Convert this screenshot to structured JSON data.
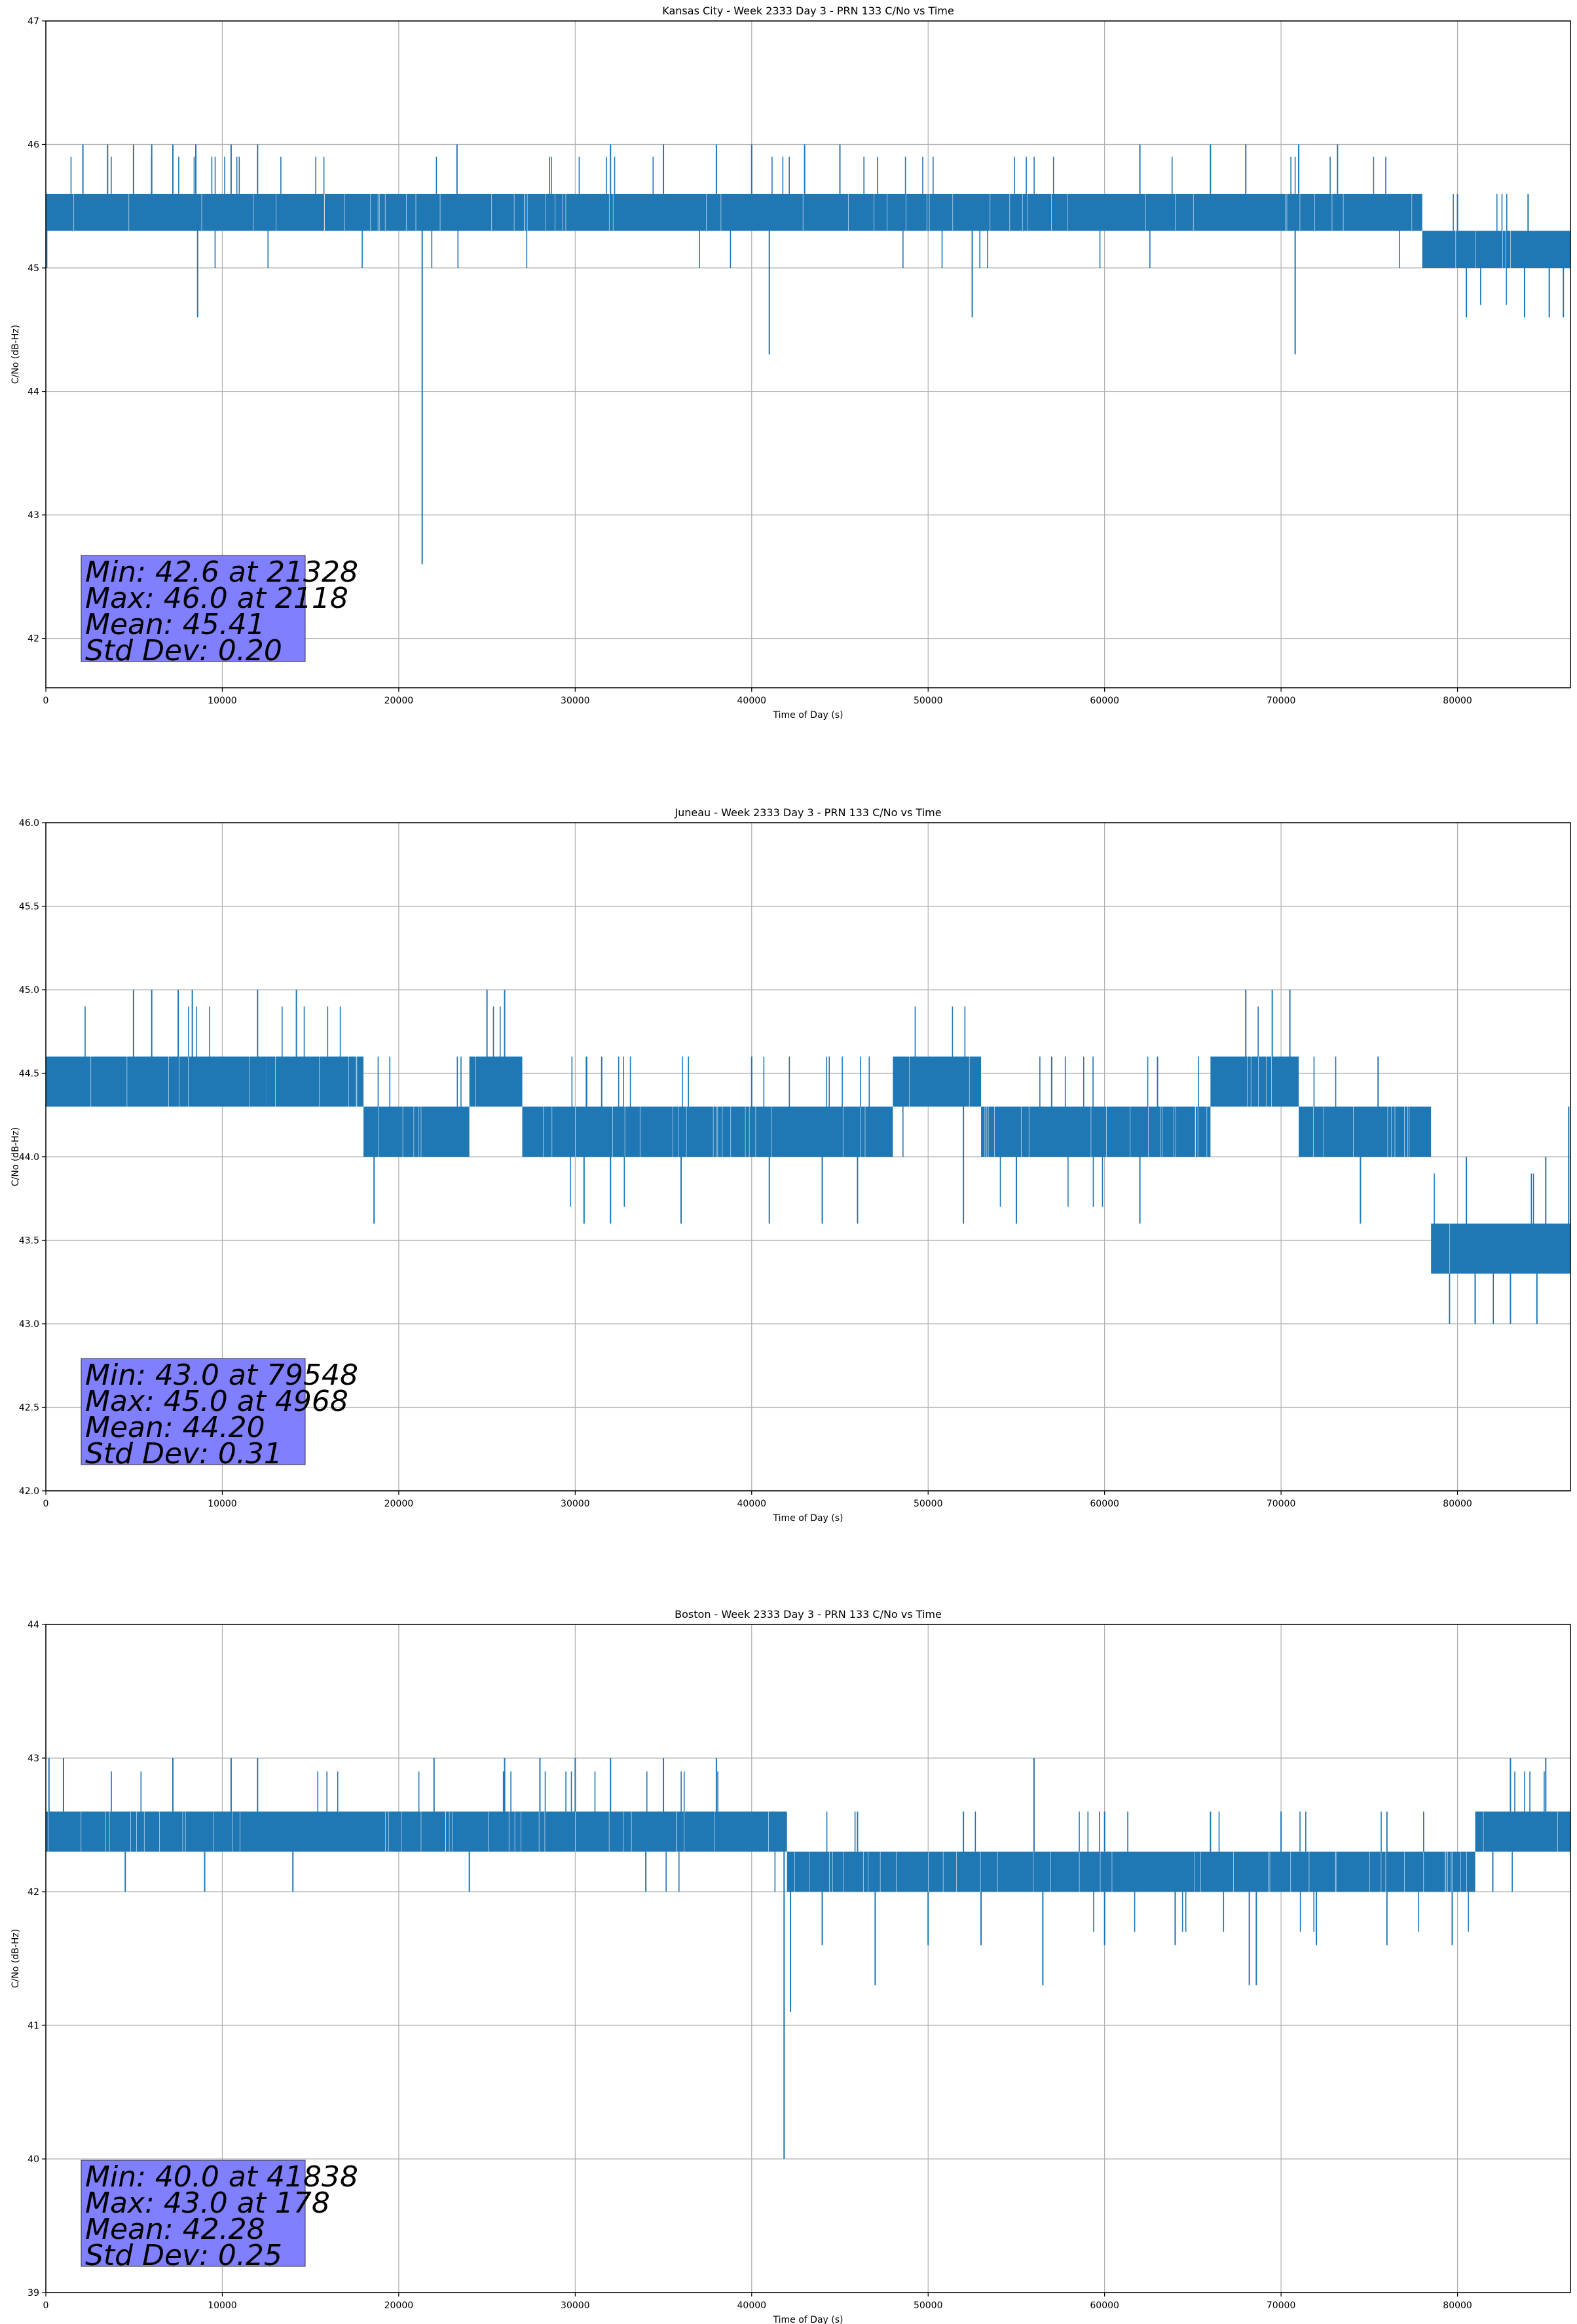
{
  "colors": {
    "line": "#1f77b4",
    "grid": "#b0b0b0",
    "stats_box": "#8080ff"
  },
  "chart_data": [
    {
      "type": "line",
      "title": "Kansas City - Week 2333 Day 3 - PRN 133 C/No vs Time",
      "xlabel": "Time of Day (s)",
      "ylabel": "C/No (dB-Hz)",
      "xlim": [
        0,
        86400
      ],
      "ylim": [
        41.6,
        47
      ],
      "xticks": [
        0,
        10000,
        20000,
        30000,
        40000,
        50000,
        60000,
        70000,
        80000
      ],
      "xtick_labels": [
        "0",
        "10000",
        "20000",
        "30000",
        "40000",
        "50000",
        "60000",
        "70000",
        "80000"
      ],
      "yticks": [
        42,
        43,
        44,
        45,
        46,
        47
      ],
      "ytick_labels": [
        "42",
        "43",
        "44",
        "45",
        "46",
        "47"
      ],
      "grid": true,
      "series": [
        {
          "name": "C/No",
          "band": [
            {
              "from": 0,
              "to": 10000,
              "low": 45.3,
              "high": 45.6
            },
            {
              "from": 10000,
              "to": 78000,
              "low": 45.3,
              "high": 45.6
            },
            {
              "from": 78000,
              "to": 86400,
              "low": 45.0,
              "high": 45.3
            }
          ],
          "spikes_up": [
            {
              "x": 2100,
              "y": 46.0
            },
            {
              "x": 3500,
              "y": 46.0
            },
            {
              "x": 4968,
              "y": 46.0
            },
            {
              "x": 6000,
              "y": 46.0
            },
            {
              "x": 7200,
              "y": 46.0
            },
            {
              "x": 8500,
              "y": 46.0
            },
            {
              "x": 10500,
              "y": 46.0
            },
            {
              "x": 12000,
              "y": 46.0
            },
            {
              "x": 23300,
              "y": 46.0
            },
            {
              "x": 32000,
              "y": 46.0
            },
            {
              "x": 35000,
              "y": 46.0
            },
            {
              "x": 38000,
              "y": 46.0
            },
            {
              "x": 40000,
              "y": 46.0
            },
            {
              "x": 43000,
              "y": 46.0
            },
            {
              "x": 45000,
              "y": 46.0
            },
            {
              "x": 62000,
              "y": 46.0
            },
            {
              "x": 66000,
              "y": 46.0
            },
            {
              "x": 68000,
              "y": 46.0
            },
            {
              "x": 71000,
              "y": 46.0
            },
            {
              "x": 73200,
              "y": 46.0
            },
            {
              "x": 80000,
              "y": 45.6
            },
            {
              "x": 84000,
              "y": 45.6
            }
          ],
          "spikes_down": [
            {
              "x": 8600,
              "y": 44.6
            },
            {
              "x": 21328,
              "y": 42.6
            },
            {
              "x": 41000,
              "y": 44.3
            },
            {
              "x": 52500,
              "y": 44.6
            },
            {
              "x": 70800,
              "y": 44.3
            },
            {
              "x": 80500,
              "y": 44.6
            },
            {
              "x": 83800,
              "y": 44.6
            },
            {
              "x": 85200,
              "y": 44.6
            },
            {
              "x": 86000,
              "y": 44.6
            }
          ]
        }
      ],
      "stats": {
        "min": "Min: 42.6 at 21328",
        "max": "Max: 46.0 at 2118",
        "mean": "Mean: 45.41",
        "std": "Std Dev: 0.20"
      }
    },
    {
      "type": "line",
      "title": "Juneau - Week 2333 Day 3 - PRN 133 C/No vs Time",
      "xlabel": "Time of Day (s)",
      "ylabel": "C/No (dB-Hz)",
      "xlim": [
        0,
        86400
      ],
      "ylim": [
        42.0,
        46.0
      ],
      "xticks": [
        0,
        10000,
        20000,
        30000,
        40000,
        50000,
        60000,
        70000,
        80000
      ],
      "xtick_labels": [
        "0",
        "10000",
        "20000",
        "30000",
        "40000",
        "50000",
        "60000",
        "70000",
        "80000"
      ],
      "yticks": [
        42.0,
        42.5,
        43.0,
        43.5,
        44.0,
        44.5,
        45.0,
        45.5,
        46.0
      ],
      "ytick_labels": [
        "42.0",
        "42.5",
        "43.0",
        "43.5",
        "44.0",
        "44.5",
        "45.0",
        "45.5",
        "46.0"
      ],
      "grid": true,
      "series": [
        {
          "name": "C/No",
          "band": [
            {
              "from": 0,
              "to": 12500,
              "low": 44.3,
              "high": 44.6
            },
            {
              "from": 12500,
              "to": 18000,
              "low": 44.3,
              "high": 44.6
            },
            {
              "from": 18000,
              "to": 24000,
              "low": 44.0,
              "high": 44.3
            },
            {
              "from": 24000,
              "to": 27000,
              "low": 44.3,
              "high": 44.6
            },
            {
              "from": 27000,
              "to": 48000,
              "low": 44.0,
              "high": 44.3
            },
            {
              "from": 48000,
              "to": 53000,
              "low": 44.3,
              "high": 44.6
            },
            {
              "from": 53000,
              "to": 66000,
              "low": 44.0,
              "high": 44.3
            },
            {
              "from": 66000,
              "to": 71000,
              "low": 44.3,
              "high": 44.6
            },
            {
              "from": 71000,
              "to": 78500,
              "low": 44.0,
              "high": 44.3
            },
            {
              "from": 78500,
              "to": 86400,
              "low": 43.3,
              "high": 43.6
            }
          ],
          "spikes_up": [
            {
              "x": 4968,
              "y": 45.0
            },
            {
              "x": 6000,
              "y": 45.0
            },
            {
              "x": 7500,
              "y": 45.0
            },
            {
              "x": 8300,
              "y": 45.0
            },
            {
              "x": 12000,
              "y": 45.0
            },
            {
              "x": 14200,
              "y": 45.0
            },
            {
              "x": 25000,
              "y": 45.0
            },
            {
              "x": 26000,
              "y": 45.0
            },
            {
              "x": 68000,
              "y": 45.0
            },
            {
              "x": 69500,
              "y": 45.0
            },
            {
              "x": 70500,
              "y": 45.0
            },
            {
              "x": 31500,
              "y": 44.6
            },
            {
              "x": 40000,
              "y": 44.6
            },
            {
              "x": 57000,
              "y": 44.6
            },
            {
              "x": 63000,
              "y": 44.6
            },
            {
              "x": 75500,
              "y": 44.6
            },
            {
              "x": 80500,
              "y": 44.0
            },
            {
              "x": 85000,
              "y": 44.0
            },
            {
              "x": 86300,
              "y": 44.3
            }
          ],
          "spikes_down": [
            {
              "x": 18600,
              "y": 43.6
            },
            {
              "x": 30500,
              "y": 43.6
            },
            {
              "x": 32000,
              "y": 43.6
            },
            {
              "x": 36000,
              "y": 43.6
            },
            {
              "x": 41000,
              "y": 43.6
            },
            {
              "x": 44000,
              "y": 43.6
            },
            {
              "x": 46000,
              "y": 43.6
            },
            {
              "x": 52000,
              "y": 43.6
            },
            {
              "x": 55000,
              "y": 43.6
            },
            {
              "x": 62000,
              "y": 43.6
            },
            {
              "x": 74500,
              "y": 43.6
            },
            {
              "x": 79548,
              "y": 43.0
            },
            {
              "x": 81000,
              "y": 43.0
            },
            {
              "x": 83000,
              "y": 43.0
            },
            {
              "x": 84500,
              "y": 43.0
            }
          ]
        }
      ],
      "stats": {
        "min": "Min: 43.0 at 79548",
        "max": "Max: 45.0 at 4968",
        "mean": "Mean: 44.20",
        "std": "Std Dev: 0.31"
      }
    },
    {
      "type": "line",
      "title": "Boston - Week 2333 Day 3 - PRN 133 C/No vs Time",
      "xlabel": "Time of Day (s)",
      "ylabel": "C/No (dB-Hz)",
      "xlim": [
        0,
        86400
      ],
      "ylim": [
        39,
        44
      ],
      "xticks": [
        0,
        10000,
        20000,
        30000,
        40000,
        50000,
        60000,
        70000,
        80000
      ],
      "xtick_labels": [
        "0",
        "10000",
        "20000",
        "30000",
        "40000",
        "50000",
        "60000",
        "70000",
        "80000"
      ],
      "yticks": [
        39,
        40,
        41,
        42,
        43,
        44
      ],
      "ytick_labels": [
        "39",
        "40",
        "41",
        "42",
        "43",
        "44"
      ],
      "grid": true,
      "series": [
        {
          "name": "C/No",
          "band": [
            {
              "from": 0,
              "to": 42000,
              "low": 42.3,
              "high": 42.6
            },
            {
              "from": 42000,
              "to": 81000,
              "low": 42.0,
              "high": 42.3
            },
            {
              "from": 81000,
              "to": 86400,
              "low": 42.3,
              "high": 42.6
            }
          ],
          "spikes_up": [
            {
              "x": 178,
              "y": 43.0
            },
            {
              "x": 1000,
              "y": 43.0
            },
            {
              "x": 7200,
              "y": 43.0
            },
            {
              "x": 10500,
              "y": 43.0
            },
            {
              "x": 12000,
              "y": 43.0
            },
            {
              "x": 22000,
              "y": 43.0
            },
            {
              "x": 26000,
              "y": 43.0
            },
            {
              "x": 28000,
              "y": 43.0
            },
            {
              "x": 30000,
              "y": 43.0
            },
            {
              "x": 32000,
              "y": 43.0
            },
            {
              "x": 35000,
              "y": 43.0
            },
            {
              "x": 38000,
              "y": 43.0
            },
            {
              "x": 56000,
              "y": 43.0
            },
            {
              "x": 83000,
              "y": 43.0
            },
            {
              "x": 85000,
              "y": 43.0
            },
            {
              "x": 46000,
              "y": 42.6
            },
            {
              "x": 52000,
              "y": 42.6
            },
            {
              "x": 60000,
              "y": 42.6
            },
            {
              "x": 66000,
              "y": 42.6
            },
            {
              "x": 70000,
              "y": 42.6
            },
            {
              "x": 76000,
              "y": 42.6
            }
          ],
          "spikes_down": [
            {
              "x": 4500,
              "y": 42.0
            },
            {
              "x": 9000,
              "y": 42.0
            },
            {
              "x": 14000,
              "y": 42.0
            },
            {
              "x": 24000,
              "y": 42.0
            },
            {
              "x": 34000,
              "y": 42.0
            },
            {
              "x": 41838,
              "y": 40.0
            },
            {
              "x": 42200,
              "y": 41.1
            },
            {
              "x": 44000,
              "y": 41.6
            },
            {
              "x": 47000,
              "y": 41.3
            },
            {
              "x": 50000,
              "y": 41.6
            },
            {
              "x": 53000,
              "y": 41.6
            },
            {
              "x": 56500,
              "y": 41.3
            },
            {
              "x": 60000,
              "y": 41.6
            },
            {
              "x": 64000,
              "y": 41.6
            },
            {
              "x": 68200,
              "y": 41.3
            },
            {
              "x": 68600,
              "y": 41.3
            },
            {
              "x": 72000,
              "y": 41.6
            },
            {
              "x": 76000,
              "y": 41.6
            },
            {
              "x": 79700,
              "y": 41.6
            },
            {
              "x": 82000,
              "y": 42.0
            }
          ]
        }
      ],
      "stats": {
        "min": "Min: 40.0 at 41838",
        "max": "Max: 43.0 at 178",
        "mean": "Mean: 42.28",
        "std": "Std Dev: 0.25"
      }
    }
  ]
}
